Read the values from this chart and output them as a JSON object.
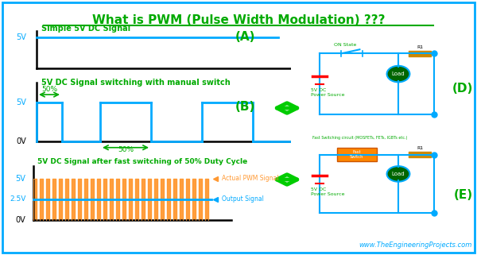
{
  "title": "What is PWM (Pulse Width Modulation) ???",
  "title_color": "#00aa00",
  "bg_color": "#ffffff",
  "border_color": "#00aaff",
  "signal_color": "#00aaff",
  "pwm_color": "#ff9933",
  "green_arrow_color": "#00cc00",
  "resistor_color": "#cc8800",
  "load_color": "#006600",
  "switch_color": "#00aaff",
  "label_color": "#00aa00",
  "text_color": "#00aa00",
  "red_color": "#ff0000",
  "website": "www.TheEngineeringProjects.com",
  "website_color": "#00aaff",
  "label_A": "(A)",
  "label_B": "(B)",
  "label_D": "(D)",
  "label_E": "(E)"
}
